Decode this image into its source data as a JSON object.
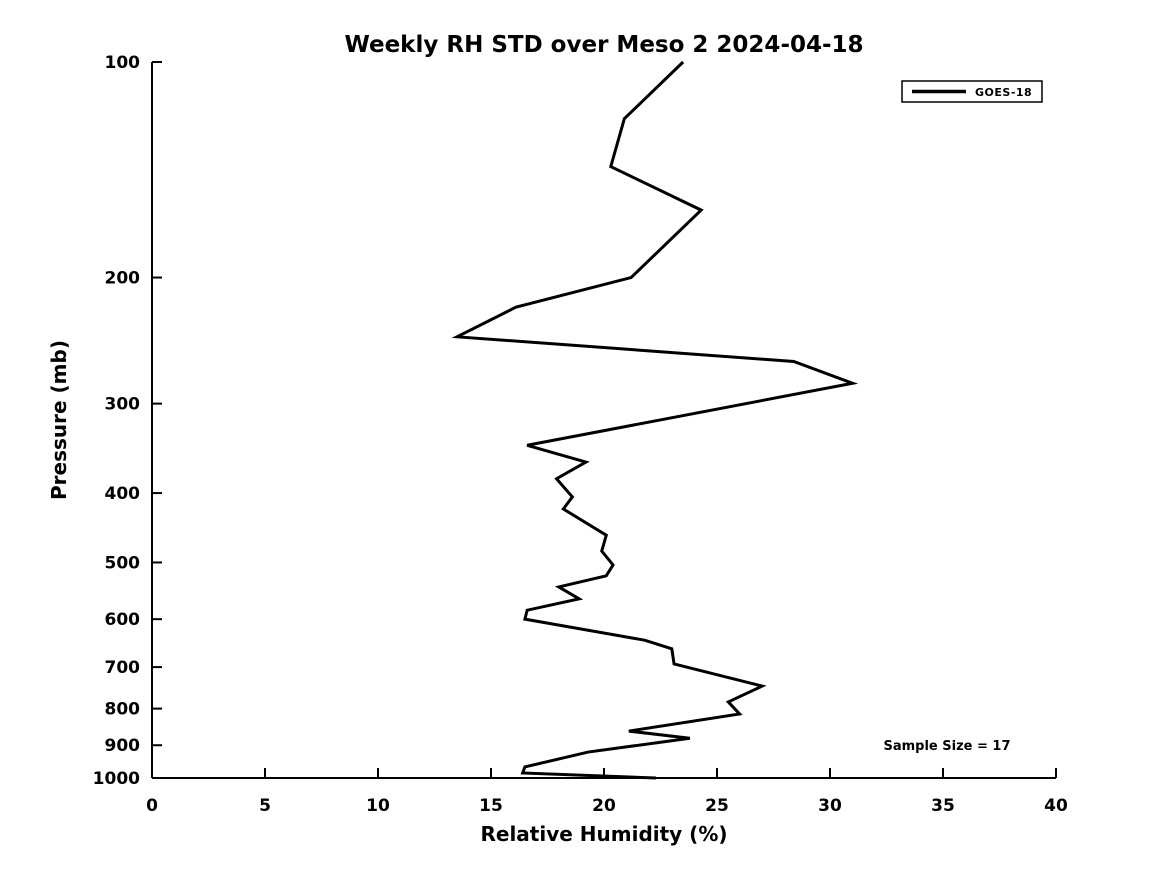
{
  "chart_data": {
    "type": "line",
    "title": "Weekly RH STD over Meso 2 2024-04-18",
    "xlabel": "Relative Humidity (%)",
    "ylabel": "Pressure (mb)",
    "xlim": [
      0,
      40
    ],
    "xticks": [
      0,
      5,
      10,
      15,
      20,
      25,
      30,
      35,
      40
    ],
    "ylim": [
      100,
      1000
    ],
    "yscale": "log",
    "y_inverted": true,
    "yticks": [
      100,
      200,
      300,
      400,
      500,
      600,
      700,
      800,
      900,
      1000
    ],
    "grid": false,
    "background_color": "#ffffff",
    "line_color": "#000000",
    "legend": {
      "position": "top-right",
      "entries": [
        {
          "label": "GOES-18",
          "color": "#000000"
        }
      ]
    },
    "annotation": "Sample Size = 17",
    "series": [
      {
        "name": "GOES-18",
        "color": "#000000",
        "points_format": "[relative_humidity_pct, pressure_mb]",
        "points": [
          [
            23.5,
            100
          ],
          [
            20.9,
            120
          ],
          [
            20.3,
            140
          ],
          [
            24.3,
            161
          ],
          [
            21.2,
            200
          ],
          [
            16.1,
            220
          ],
          [
            13.5,
            242
          ],
          [
            28.4,
            262
          ],
          [
            31.0,
            281
          ],
          [
            16.6,
            343
          ],
          [
            19.2,
            362
          ],
          [
            17.9,
            382
          ],
          [
            18.6,
            405
          ],
          [
            18.2,
            421
          ],
          [
            20.1,
            458
          ],
          [
            19.9,
            482
          ],
          [
            20.4,
            504
          ],
          [
            20.1,
            522
          ],
          [
            18.0,
            541
          ],
          [
            18.9,
            562
          ],
          [
            16.6,
            583
          ],
          [
            16.5,
            600
          ],
          [
            21.8,
            642
          ],
          [
            23.0,
            660
          ],
          [
            23.1,
            693
          ],
          [
            27.0,
            744
          ],
          [
            25.5,
            783
          ],
          [
            26.0,
            814
          ],
          [
            21.1,
            860
          ],
          [
            23.8,
            880
          ],
          [
            19.3,
            920
          ],
          [
            16.5,
            965
          ],
          [
            16.4,
            984
          ],
          [
            22.3,
            1000
          ]
        ]
      }
    ]
  }
}
